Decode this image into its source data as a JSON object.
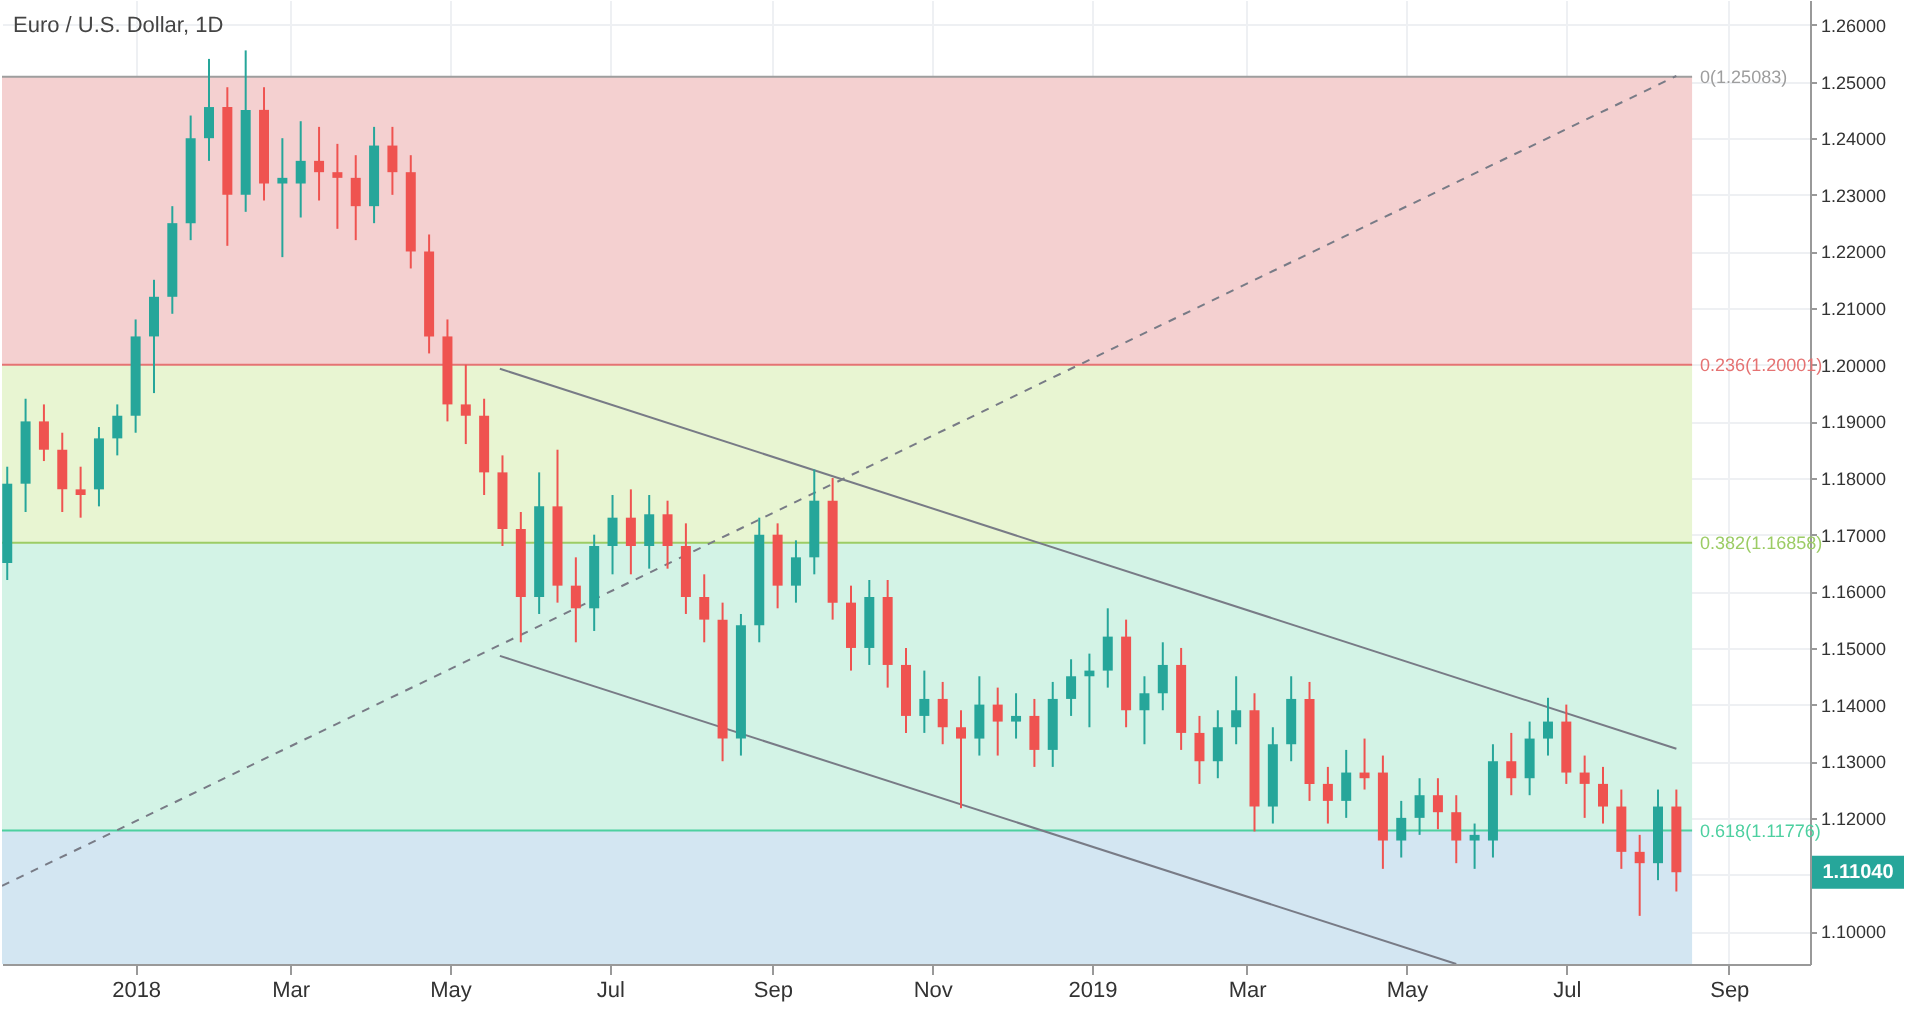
{
  "chart_data": {
    "type": "candlestick",
    "title": "Euro / U.S. Dollar, 1D",
    "x": [
      "2017-11-13",
      "2017-11-20",
      "2017-11-27",
      "2017-12-04",
      "2017-12-11",
      "2017-12-18",
      "2017-12-25",
      "2018-01-01",
      "2018-01-08",
      "2018-01-15",
      "2018-01-22",
      "2018-01-29",
      "2018-02-05",
      "2018-02-12",
      "2018-02-19",
      "2018-02-26",
      "2018-03-05",
      "2018-03-12",
      "2018-03-19",
      "2018-03-26",
      "2018-04-02",
      "2018-04-09",
      "2018-04-16",
      "2018-04-23",
      "2018-04-30",
      "2018-05-07",
      "2018-05-14",
      "2018-05-21",
      "2018-05-28",
      "2018-06-04",
      "2018-06-11",
      "2018-06-18",
      "2018-06-25",
      "2018-07-02",
      "2018-07-09",
      "2018-07-16",
      "2018-07-23",
      "2018-07-30",
      "2018-08-06",
      "2018-08-13",
      "2018-08-20",
      "2018-08-27",
      "2018-09-03",
      "2018-09-10",
      "2018-09-17",
      "2018-09-24",
      "2018-10-01",
      "2018-10-08",
      "2018-10-15",
      "2018-10-22",
      "2018-10-29",
      "2018-11-05",
      "2018-11-12",
      "2018-11-19",
      "2018-11-26",
      "2018-12-03",
      "2018-12-10",
      "2018-12-17",
      "2018-12-24",
      "2018-12-31",
      "2019-01-07",
      "2019-01-14",
      "2019-01-21",
      "2019-01-28",
      "2019-02-04",
      "2019-02-11",
      "2019-02-18",
      "2019-02-25",
      "2019-03-04",
      "2019-03-11",
      "2019-03-18",
      "2019-03-25",
      "2019-04-01",
      "2019-04-08",
      "2019-04-15",
      "2019-04-22",
      "2019-04-29",
      "2019-05-06",
      "2019-05-13",
      "2019-05-20",
      "2019-05-27",
      "2019-06-03",
      "2019-06-10",
      "2019-06-17",
      "2019-06-24",
      "2019-07-01",
      "2019-07-08",
      "2019-07-15",
      "2019-07-22",
      "2019-07-29",
      "2019-08-05",
      "2019-08-12"
    ],
    "ohlc": [
      [
        1.165,
        1.182,
        1.162,
        1.179
      ],
      [
        1.179,
        1.194,
        1.174,
        1.19
      ],
      [
        1.19,
        1.193,
        1.183,
        1.185
      ],
      [
        1.185,
        1.188,
        1.174,
        1.178
      ],
      [
        1.178,
        1.182,
        1.173,
        1.177
      ],
      [
        1.178,
        1.189,
        1.175,
        1.187
      ],
      [
        1.187,
        1.193,
        1.184,
        1.191
      ],
      [
        1.191,
        1.208,
        1.188,
        1.205
      ],
      [
        1.205,
        1.215,
        1.195,
        1.212
      ],
      [
        1.212,
        1.228,
        1.209,
        1.225
      ],
      [
        1.225,
        1.244,
        1.222,
        1.24
      ],
      [
        1.24,
        1.254,
        1.236,
        1.2455
      ],
      [
        1.2455,
        1.249,
        1.221,
        1.23
      ],
      [
        1.23,
        1.2555,
        1.227,
        1.245
      ],
      [
        1.245,
        1.249,
        1.229,
        1.232
      ],
      [
        1.232,
        1.24,
        1.219,
        1.233
      ],
      [
        1.232,
        1.243,
        1.226,
        1.236
      ],
      [
        1.236,
        1.242,
        1.229,
        1.234
      ],
      [
        1.234,
        1.239,
        1.224,
        1.233
      ],
      [
        1.233,
        1.237,
        1.222,
        1.228
      ],
      [
        1.228,
        1.242,
        1.225,
        1.2387
      ],
      [
        1.2387,
        1.242,
        1.23,
        1.234
      ],
      [
        1.234,
        1.237,
        1.217,
        1.22
      ],
      [
        1.22,
        1.223,
        1.202,
        1.205
      ],
      [
        1.205,
        1.208,
        1.19,
        1.193
      ],
      [
        1.193,
        1.2,
        1.186,
        1.191
      ],
      [
        1.191,
        1.194,
        1.177,
        1.181
      ],
      [
        1.181,
        1.184,
        1.168,
        1.171
      ],
      [
        1.171,
        1.174,
        1.151,
        1.159
      ],
      [
        1.159,
        1.181,
        1.156,
        1.175
      ],
      [
        1.175,
        1.185,
        1.158,
        1.161
      ],
      [
        1.161,
        1.166,
        1.151,
        1.157
      ],
      [
        1.157,
        1.17,
        1.153,
        1.168
      ],
      [
        1.168,
        1.177,
        1.163,
        1.173
      ],
      [
        1.173,
        1.178,
        1.163,
        1.168
      ],
      [
        1.168,
        1.177,
        1.164,
        1.1736
      ],
      [
        1.1736,
        1.176,
        1.164,
        1.168
      ],
      [
        1.168,
        1.172,
        1.156,
        1.159
      ],
      [
        1.159,
        1.163,
        1.151,
        1.155
      ],
      [
        1.155,
        1.158,
        1.13,
        1.134
      ],
      [
        1.134,
        1.156,
        1.131,
        1.154
      ],
      [
        1.154,
        1.173,
        1.151,
        1.17
      ],
      [
        1.17,
        1.172,
        1.157,
        1.161
      ],
      [
        1.161,
        1.169,
        1.158,
        1.166
      ],
      [
        1.166,
        1.1815,
        1.163,
        1.176
      ],
      [
        1.176,
        1.18,
        1.155,
        1.158
      ],
      [
        1.158,
        1.161,
        1.146,
        1.15
      ],
      [
        1.15,
        1.162,
        1.147,
        1.159
      ],
      [
        1.159,
        1.162,
        1.143,
        1.147
      ],
      [
        1.147,
        1.15,
        1.135,
        1.138
      ],
      [
        1.138,
        1.146,
        1.135,
        1.141
      ],
      [
        1.141,
        1.144,
        1.133,
        1.136
      ],
      [
        1.136,
        1.139,
        1.1217,
        1.134
      ],
      [
        1.134,
        1.145,
        1.131,
        1.14
      ],
      [
        1.14,
        1.143,
        1.131,
        1.137
      ],
      [
        1.137,
        1.142,
        1.134,
        1.138
      ],
      [
        1.138,
        1.141,
        1.129,
        1.132
      ],
      [
        1.132,
        1.144,
        1.129,
        1.141
      ],
      [
        1.141,
        1.148,
        1.138,
        1.145
      ],
      [
        1.145,
        1.149,
        1.136,
        1.146
      ],
      [
        1.146,
        1.157,
        1.143,
        1.152
      ],
      [
        1.152,
        1.155,
        1.136,
        1.139
      ],
      [
        1.139,
        1.145,
        1.133,
        1.142
      ],
      [
        1.142,
        1.151,
        1.139,
        1.147
      ],
      [
        1.147,
        1.15,
        1.132,
        1.135
      ],
      [
        1.135,
        1.138,
        1.126,
        1.13
      ],
      [
        1.13,
        1.139,
        1.127,
        1.136
      ],
      [
        1.136,
        1.145,
        1.133,
        1.139
      ],
      [
        1.139,
        1.142,
        1.1176,
        1.122
      ],
      [
        1.122,
        1.136,
        1.119,
        1.133
      ],
      [
        1.133,
        1.145,
        1.13,
        1.141
      ],
      [
        1.141,
        1.144,
        1.123,
        1.126
      ],
      [
        1.126,
        1.129,
        1.119,
        1.123
      ],
      [
        1.123,
        1.132,
        1.12,
        1.128
      ],
      [
        1.128,
        1.134,
        1.125,
        1.127
      ],
      [
        1.128,
        1.131,
        1.111,
        1.116
      ],
      [
        1.116,
        1.123,
        1.113,
        1.12
      ],
      [
        1.12,
        1.127,
        1.117,
        1.124
      ],
      [
        1.124,
        1.127,
        1.118,
        1.121
      ],
      [
        1.121,
        1.124,
        1.112,
        1.116
      ],
      [
        1.116,
        1.119,
        1.111,
        1.117
      ],
      [
        1.116,
        1.133,
        1.113,
        1.13
      ],
      [
        1.13,
        1.135,
        1.124,
        1.127
      ],
      [
        1.127,
        1.137,
        1.124,
        1.134
      ],
      [
        1.134,
        1.1412,
        1.131,
        1.137
      ],
      [
        1.137,
        1.14,
        1.126,
        1.128
      ],
      [
        1.128,
        1.131,
        1.12,
        1.126
      ],
      [
        1.126,
        1.129,
        1.119,
        1.122
      ],
      [
        1.122,
        1.125,
        1.111,
        1.114
      ],
      [
        1.114,
        1.117,
        1.1027,
        1.112
      ],
      [
        1.112,
        1.125,
        1.109,
        1.122
      ],
      [
        1.122,
        1.125,
        1.107,
        1.1104
      ]
    ],
    "series": [
      {
        "type": "line",
        "color": "#787b86",
        "x": [
          "2018-05-20",
          "2019-08-12"
        ],
        "values": [
          1.1993,
          1.1322
        ]
      },
      {
        "type": "line",
        "color": "#787b86",
        "x": [
          "2018-05-20",
          "2019-05-20"
        ],
        "values": [
          1.1486,
          1.0942
        ]
      },
      {
        "type": "line",
        "color": "#787b86",
        "line_style": "dashed",
        "x": [
          "2017-11-11",
          "2019-08-12"
        ],
        "values": [
          1.108,
          1.251
        ]
      }
    ],
    "xlim": [
      "2017-11-11",
      "2019-10-02"
    ],
    "xticks": [
      {
        "value": "2018-01-01",
        "label": "2018"
      },
      {
        "value": "2018-03-01",
        "label": "Mar"
      },
      {
        "value": "2018-05-01",
        "label": "May"
      },
      {
        "value": "2018-07-01",
        "label": "Jul"
      },
      {
        "value": "2018-09-01",
        "label": "Sep"
      },
      {
        "value": "2018-11-01",
        "label": "Nov"
      },
      {
        "value": "2019-01-01",
        "label": "2019"
      },
      {
        "value": "2019-03-01",
        "label": "Mar"
      },
      {
        "value": "2019-05-01",
        "label": "May"
      },
      {
        "value": "2019-07-01",
        "label": "Jul"
      },
      {
        "value": "2019-09-01",
        "label": "Sep"
      }
    ],
    "ylim": [
      1.0942,
      1.2644
    ],
    "yticks": [
      {
        "value": 1.1,
        "label": "1.10000"
      },
      {
        "value": 1.11,
        "label": null
      },
      {
        "value": 1.12,
        "label": "1.12000"
      },
      {
        "value": 1.13,
        "label": "1.13000"
      },
      {
        "value": 1.14,
        "label": "1.14000"
      },
      {
        "value": 1.15,
        "label": "1.15000"
      },
      {
        "value": 1.16,
        "label": "1.16000"
      },
      {
        "value": 1.17,
        "label": "1.17000"
      },
      {
        "value": 1.18,
        "label": "1.18000"
      },
      {
        "value": 1.19,
        "label": "1.19000"
      },
      {
        "value": 1.2,
        "label": "1.20000"
      },
      {
        "value": 1.21,
        "label": "1.21000"
      },
      {
        "value": 1.22,
        "label": "1.22000"
      },
      {
        "value": 1.23,
        "label": "1.23000"
      },
      {
        "value": 1.24,
        "label": "1.24000"
      },
      {
        "value": 1.25,
        "label": "1.25000"
      },
      {
        "value": 1.26,
        "label": "1.26000"
      }
    ],
    "grid": true,
    "bands": [
      {
        "axis": "y",
        "from": 1.20001,
        "to": 1.25083,
        "color": "#f4d0d0"
      },
      {
        "axis": "y",
        "from": 1.16858,
        "to": 1.20001,
        "color": "#e8f5d2"
      },
      {
        "axis": "y",
        "from": 1.11776,
        "to": 1.16858,
        "color": "#d3f3e6"
      },
      {
        "axis": "y",
        "from": 1.0942,
        "to": 1.11776,
        "color": "#d3e6f2"
      }
    ],
    "ref_lines": [
      {
        "axis": "y",
        "value": 1.25083,
        "label": "0(1.25083)",
        "color": "#9e9e9e"
      },
      {
        "axis": "y",
        "value": 1.20001,
        "label": "0.236(1.20001)",
        "color": "#e57373"
      },
      {
        "axis": "y",
        "value": 1.16858,
        "label": "0.382(1.16858)",
        "color": "#9ccc65"
      },
      {
        "axis": "y",
        "value": 1.11776,
        "label": "0.618(1.11776)",
        "color": "#4dd0a0"
      }
    ],
    "annotations": [
      "1.11040"
    ]
  }
}
